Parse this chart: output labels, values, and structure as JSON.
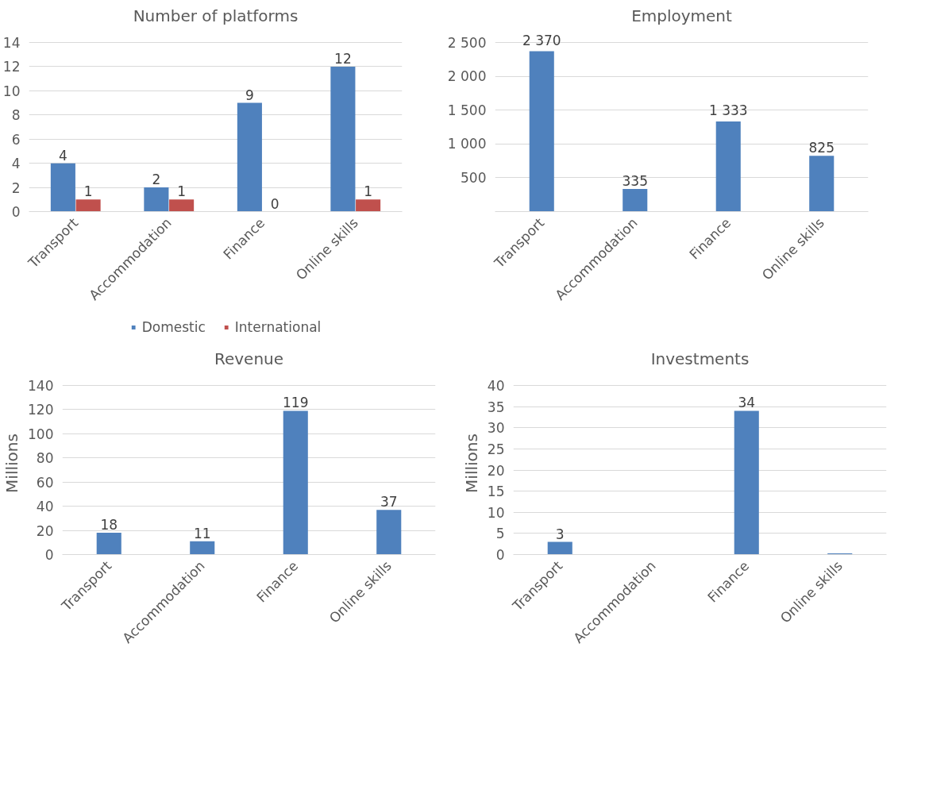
{
  "chart_data": [
    {
      "type": "bar",
      "title": "Number of platforms",
      "categories": [
        "Transport",
        "Accommodation",
        "Finance",
        "Online skills"
      ],
      "series": [
        {
          "name": "Domestic",
          "color": "#4f81bd",
          "values": [
            4,
            2,
            9,
            12
          ]
        },
        {
          "name": "International",
          "color": "#c0504d",
          "values": [
            1,
            1,
            0,
            1
          ]
        }
      ],
      "ylim": [
        0,
        14
      ],
      "yticks": [
        0,
        2,
        4,
        6,
        8,
        10,
        12,
        14
      ],
      "grid": "y",
      "legend": "bottom",
      "data_labels": true
    },
    {
      "type": "bar",
      "title": "Employment",
      "categories": [
        "Transport",
        "Accommodation",
        "Finance",
        "Online skills"
      ],
      "values": [
        2370,
        335,
        1333,
        825
      ],
      "color": "#4f81bd",
      "value_labels": [
        "2 370",
        "335",
        "1 333",
        "825"
      ],
      "ylim": [
        0,
        2500
      ],
      "yticks": [
        {
          "value": 500,
          "label": "500"
        },
        {
          "value": 1000,
          "label": "1 000"
        },
        {
          "value": 1500,
          "label": "1 500"
        },
        {
          "value": 2000,
          "label": "2 000"
        },
        {
          "value": 2500,
          "label": "2 500"
        }
      ],
      "grid": "y"
    },
    {
      "type": "bar",
      "title": "Revenue",
      "ylabel": "Millions",
      "categories": [
        "Transport",
        "Accommodation",
        "Finance",
        "Online skills"
      ],
      "values": [
        18,
        11,
        119,
        37
      ],
      "color": "#4f81bd",
      "data_labels": true,
      "ylim": [
        0,
        140
      ],
      "yticks": [
        0,
        20,
        40,
        60,
        80,
        100,
        120,
        140
      ],
      "grid": "y"
    },
    {
      "type": "bar",
      "title": "Investments",
      "ylabel": "Millions",
      "categories": [
        "Transport",
        "Accommodation",
        "Finance",
        "Online skills"
      ],
      "values": [
        3,
        0,
        34,
        0.3
      ],
      "color": "#4f81bd",
      "value_labels": [
        "3",
        null,
        "34",
        null
      ],
      "ylim": [
        0,
        40
      ],
      "yticks": [
        0,
        5,
        10,
        15,
        20,
        25,
        30,
        35,
        40
      ],
      "grid": "y"
    }
  ]
}
